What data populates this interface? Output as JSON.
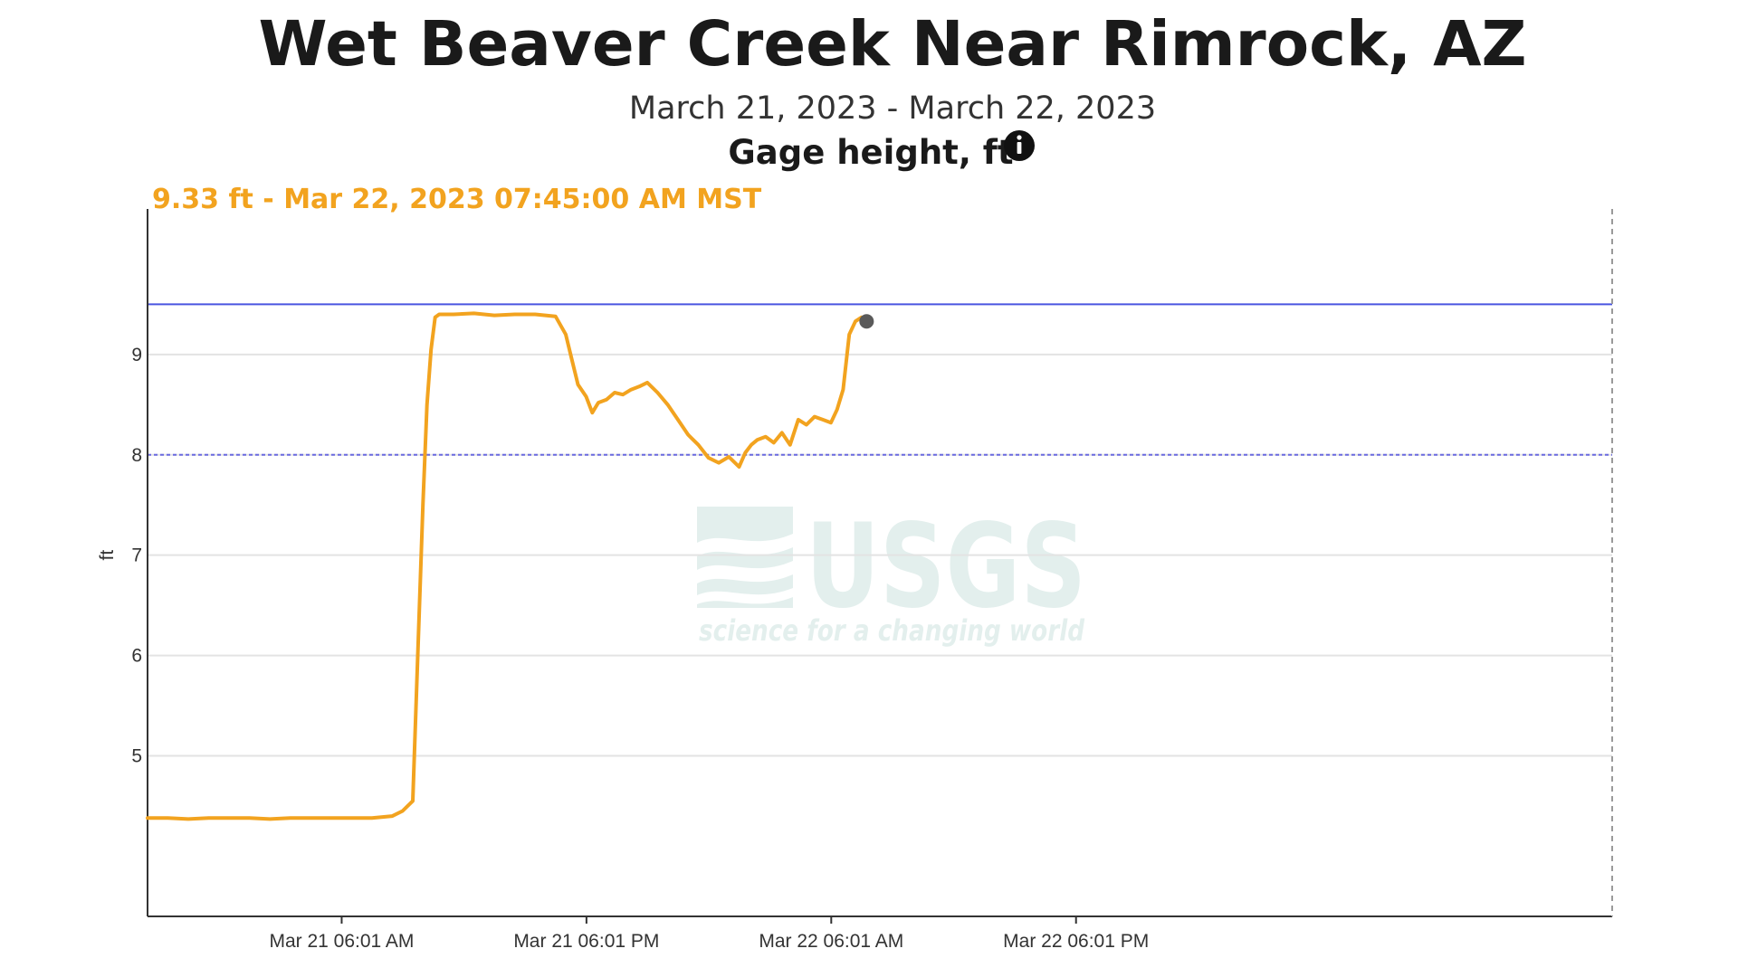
{
  "page": {
    "title": "Wet Beaver Creek Near Rimrock, AZ",
    "date_range": "March 21, 2023 - March 22, 2023",
    "parameter": "Gage height, ft",
    "info_icon": "info-circle-icon",
    "readout": "9.33 ft - Mar 22, 2023 07:45:00 AM MST"
  },
  "watermark": {
    "text": "USGS",
    "tagline": "science for a changing world"
  },
  "colors": {
    "series": "#f2a31f",
    "readout": "#f2a31f",
    "threshold_solid": "#4a55e0",
    "threshold_dashed": "#6a6ae0",
    "cursor_dot": "#5a5a5a",
    "axis": "#333333",
    "grid": "#e3e3e3"
  },
  "chart_data": {
    "type": "line",
    "title": "Gage height, ft",
    "ylabel": "ft",
    "xlabel": "",
    "x_unit": "hours since Mar 21, 2023 00:00 MST",
    "xlim": [
      -3.5,
      68.3
    ],
    "ylim": [
      3.4,
      10.45
    ],
    "x_ticks": [
      {
        "x": 6.0167,
        "label": "Mar 21 06:01 AM"
      },
      {
        "x": 18.0167,
        "label": "Mar 21 06:01 PM"
      },
      {
        "x": 30.0167,
        "label": "Mar 22 06:01 AM"
      },
      {
        "x": 42.0167,
        "label": "Mar 22 06:01 PM"
      }
    ],
    "y_ticks": [
      5,
      6,
      7,
      8,
      9
    ],
    "grid": true,
    "legend": "none",
    "reference_lines": [
      {
        "y": 9.5,
        "style": "solid"
      },
      {
        "y": 8.0,
        "style": "dashed"
      }
    ],
    "cursor": {
      "x": 31.75,
      "y": 9.33
    },
    "series": [
      {
        "x": [
          -3.5,
          -2.5,
          -1.5,
          -0.5,
          0.5,
          1.5,
          2.5,
          3.5,
          4.5,
          5.5,
          6.5,
          7.5,
          8.5,
          9.0,
          9.5,
          10.0,
          10.2,
          10.4,
          10.6,
          10.8,
          11.0,
          11.25,
          11.5,
          12.5,
          13.5,
          14.5,
          15.5,
          16.5,
          17.0,
          17.3,
          17.6,
          18.0,
          18.3,
          18.6,
          19.0,
          19.4,
          19.8,
          20.2,
          20.6,
          21.0,
          21.5,
          22.0,
          22.5,
          23.0,
          23.5,
          24.0,
          24.5,
          25.0,
          25.5,
          25.8,
          26.1,
          26.4,
          26.8,
          27.2,
          27.6,
          28.0,
          28.4,
          28.8,
          29.2,
          29.6,
          30.0,
          30.3,
          30.6,
          30.9,
          31.2,
          31.5,
          31.75
        ],
        "y": [
          4.38,
          4.38,
          4.37,
          4.38,
          4.38,
          4.38,
          4.37,
          4.38,
          4.38,
          4.38,
          4.38,
          4.38,
          4.4,
          4.45,
          4.55,
          7.5,
          8.5,
          9.05,
          9.37,
          9.4,
          9.4,
          9.4,
          9.4,
          9.41,
          9.39,
          9.4,
          9.4,
          9.38,
          9.2,
          8.95,
          8.7,
          8.58,
          8.42,
          8.52,
          8.55,
          8.62,
          8.6,
          8.65,
          8.68,
          8.72,
          8.62,
          8.5,
          8.35,
          8.2,
          8.1,
          7.97,
          7.92,
          7.98,
          7.88,
          8.02,
          8.1,
          8.15,
          8.18,
          8.12,
          8.22,
          8.1,
          8.35,
          8.3,
          8.38,
          8.35,
          8.32,
          8.45,
          8.65,
          9.2,
          9.33,
          9.37,
          9.33
        ]
      }
    ]
  }
}
